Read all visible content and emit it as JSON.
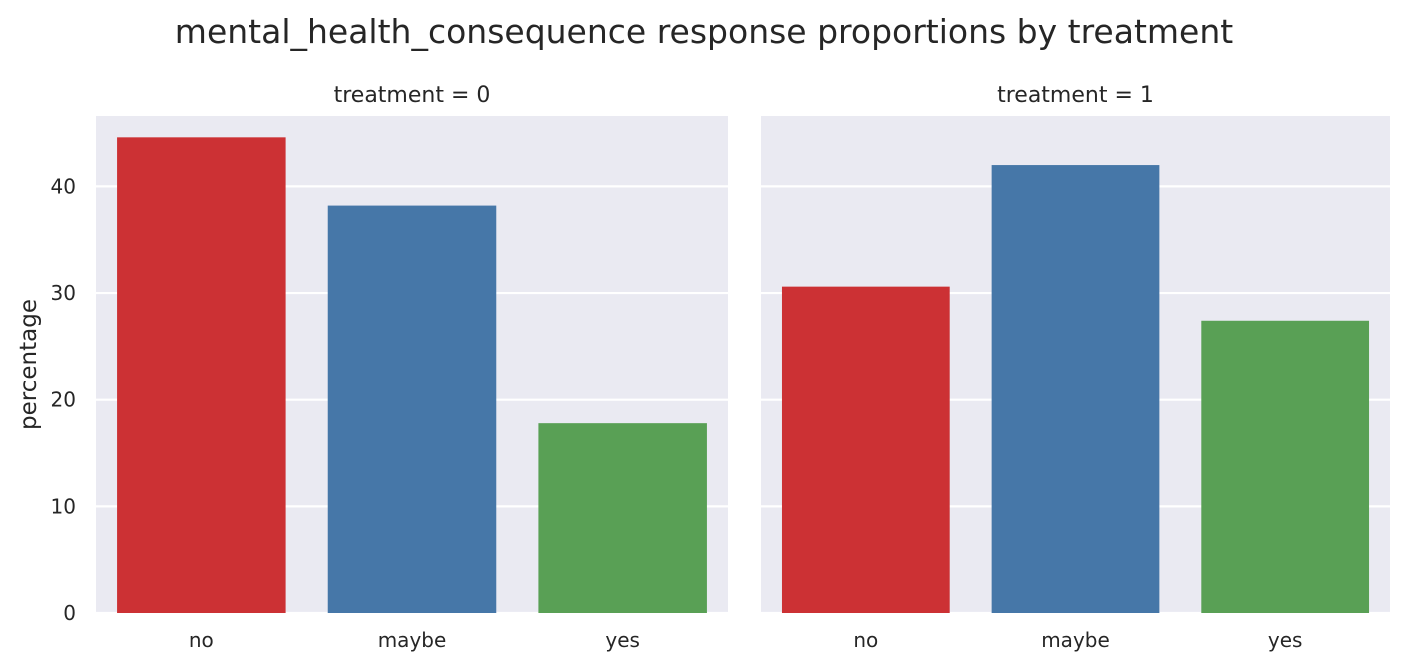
{
  "chart_data": {
    "type": "bar",
    "title": "mental_health_consequence response proportions by treatment",
    "ylabel": "percentage",
    "ylim": [
      0,
      46.6
    ],
    "yticks": [
      0,
      10,
      20,
      30,
      40
    ],
    "grid": true,
    "categories": [
      "no",
      "maybe",
      "yes"
    ],
    "colors": [
      "#CC3134",
      "#4677A8",
      "#59A055"
    ],
    "facets": [
      {
        "title": "treatment = 0",
        "values": [
          44.6,
          38.2,
          17.8
        ]
      },
      {
        "title": "treatment = 1",
        "values": [
          30.6,
          42.0,
          27.4
        ]
      }
    ]
  }
}
